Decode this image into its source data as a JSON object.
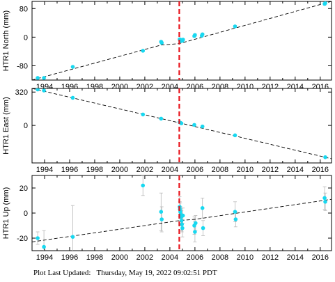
{
  "footer": {
    "text": "Plot Last Updated:   Thursday, May 19, 2022 09:02:51 PDT"
  },
  "colors": {
    "point": "#18d8f0",
    "errorbar": "#b8b8b8",
    "trend": "#000000",
    "event_line": "#e8141c"
  },
  "chart_data": [
    {
      "type": "scatter",
      "ylabel": "HTR1 North (mm)",
      "xlim": [
        1993.0,
        2016.9
      ],
      "ylim": [
        -120,
        100
      ],
      "yticks": [
        80,
        0,
        -80
      ],
      "xticks": [
        1994,
        1996,
        1998,
        2000,
        2002,
        2004,
        2006,
        2008,
        2010,
        2012,
        2014,
        2016
      ],
      "event_line_x": 2004.75,
      "points": [
        {
          "x": 1993.45,
          "y": -114,
          "err": 2
        },
        {
          "x": 1993.95,
          "y": -114,
          "err": 2
        },
        {
          "x": 1996.25,
          "y": -83,
          "err": 2
        },
        {
          "x": 2001.85,
          "y": -38,
          "err": 2
        },
        {
          "x": 2003.3,
          "y": -13,
          "err": 3
        },
        {
          "x": 2003.35,
          "y": -16,
          "err": 3
        },
        {
          "x": 2004.78,
          "y": -6,
          "err": 3
        },
        {
          "x": 2004.83,
          "y": -9,
          "err": 3
        },
        {
          "x": 2004.88,
          "y": -11,
          "err": 3
        },
        {
          "x": 2004.93,
          "y": -8,
          "err": 3
        },
        {
          "x": 2005.0,
          "y": -10,
          "err": 3
        },
        {
          "x": 2005.05,
          "y": -7,
          "err": 3
        },
        {
          "x": 2005.95,
          "y": 3,
          "err": 3
        },
        {
          "x": 2006.0,
          "y": 6,
          "err": 3
        },
        {
          "x": 2006.55,
          "y": 4,
          "err": 3
        },
        {
          "x": 2006.6,
          "y": 8,
          "err": 3
        },
        {
          "x": 2009.2,
          "y": 30,
          "err": 3
        },
        {
          "x": 2016.35,
          "y": 93,
          "err": 3
        },
        {
          "x": 2016.4,
          "y": 95,
          "err": 3
        }
      ],
      "trend": [
        [
          1993.0,
          -120
        ],
        [
          2003.3,
          -22
        ],
        [
          2004.75,
          -18
        ],
        [
          2016.9,
          100
        ]
      ]
    },
    {
      "type": "scatter",
      "ylabel": "HTR1 East (mm)",
      "xlim": [
        1993.0,
        2016.9
      ],
      "ylim": [
        -360,
        355
      ],
      "yticks": [
        320,
        0
      ],
      "xticks": [
        1994,
        1996,
        1998,
        2000,
        2002,
        2004,
        2006,
        2008,
        2010,
        2012,
        2014,
        2016
      ],
      "event_line_x": 2004.75,
      "points": [
        {
          "x": 1993.45,
          "y": 345,
          "err": 4
        },
        {
          "x": 1993.95,
          "y": 335,
          "err": 4
        },
        {
          "x": 1996.25,
          "y": 265,
          "err": 4
        },
        {
          "x": 2001.85,
          "y": 105,
          "err": 4
        },
        {
          "x": 2003.3,
          "y": 65,
          "err": 4
        },
        {
          "x": 2004.78,
          "y": 30,
          "err": 4
        },
        {
          "x": 2004.85,
          "y": 25,
          "err": 4
        },
        {
          "x": 2004.92,
          "y": 20,
          "err": 4
        },
        {
          "x": 2005.95,
          "y": 5,
          "err": 4
        },
        {
          "x": 2006.6,
          "y": -10,
          "err": 4
        },
        {
          "x": 2009.2,
          "y": -95,
          "err": 4
        },
        {
          "x": 2016.4,
          "y": -305,
          "err": 4
        }
      ],
      "trend": [
        [
          1993.0,
          355
        ],
        [
          2004.75,
          25
        ],
        [
          2016.9,
          -320
        ]
      ]
    },
    {
      "type": "scatter",
      "ylabel": "HTR1 Up (mm)",
      "xlim": [
        1993.0,
        2016.9
      ],
      "ylim": [
        -30,
        30
      ],
      "yticks": [
        20,
        0,
        -20
      ],
      "xticks": [
        1994,
        1996,
        1998,
        2000,
        2002,
        2004,
        2006,
        2008,
        2010,
        2012,
        2014,
        2016
      ],
      "event_line_x": 2004.75,
      "points": [
        {
          "x": 1993.45,
          "y": -20,
          "err": 5
        },
        {
          "x": 1993.95,
          "y": -27,
          "err": 13
        },
        {
          "x": 1996.25,
          "y": -19,
          "err": 25
        },
        {
          "x": 2001.85,
          "y": 22,
          "err": 8
        },
        {
          "x": 2003.3,
          "y": 1,
          "err": 15
        },
        {
          "x": 2003.35,
          "y": -5,
          "err": 10
        },
        {
          "x": 2004.78,
          "y": 5,
          "err": 8
        },
        {
          "x": 2004.8,
          "y": 3,
          "err": 6
        },
        {
          "x": 2004.83,
          "y": 1,
          "err": 7
        },
        {
          "x": 2004.86,
          "y": -1,
          "err": 6
        },
        {
          "x": 2004.9,
          "y": -3,
          "err": 7
        },
        {
          "x": 2004.93,
          "y": -6,
          "err": 8
        },
        {
          "x": 2004.96,
          "y": -9,
          "err": 6
        },
        {
          "x": 2005.0,
          "y": -12,
          "err": 7
        },
        {
          "x": 2005.04,
          "y": -2,
          "err": 6
        },
        {
          "x": 2005.95,
          "y": -10,
          "err": 7
        },
        {
          "x": 2006.0,
          "y": -15,
          "err": 8
        },
        {
          "x": 2006.05,
          "y": -8,
          "err": 6
        },
        {
          "x": 2006.6,
          "y": 4,
          "err": 8
        },
        {
          "x": 2006.65,
          "y": -12,
          "err": 6
        },
        {
          "x": 2009.2,
          "y": 1,
          "err": 8
        },
        {
          "x": 2009.25,
          "y": -5,
          "err": 6
        },
        {
          "x": 2016.35,
          "y": 12,
          "err": 9
        },
        {
          "x": 2016.4,
          "y": 9,
          "err": 7
        }
      ],
      "trend": [
        [
          1993.0,
          -23
        ],
        [
          2004.75,
          -6
        ],
        [
          2006.0,
          -5
        ],
        [
          2016.9,
          11
        ]
      ]
    }
  ]
}
